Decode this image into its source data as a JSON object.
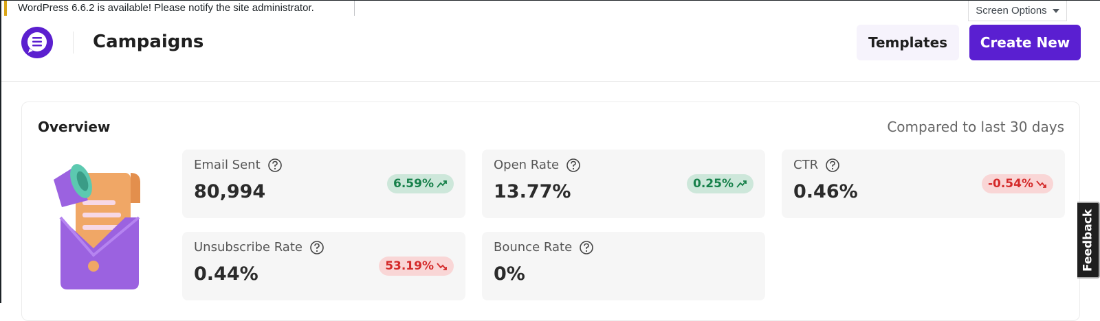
{
  "notice": "WordPress 6.6.2 is available! Please notify the site administrator.",
  "screen_options": "Screen Options",
  "header": {
    "title": "Campaigns",
    "buttons": [
      "Templates",
      "Create New"
    ]
  },
  "overview": {
    "title": "Overview",
    "comparison": "Compared to last 30 days",
    "metrics": [
      {
        "label": "Email Sent",
        "value": "80,994",
        "change": "6.59%",
        "trend": "up"
      },
      {
        "label": "Open Rate",
        "value": "13.77%",
        "change": "0.25%",
        "trend": "up"
      },
      {
        "label": "CTR",
        "value": "0.46%",
        "change": "-0.54%",
        "trend": "down"
      },
      {
        "label": "Unsubscribe Rate",
        "value": "0.44%",
        "change": "53.19%",
        "trend": "down"
      },
      {
        "label": "Bounce Rate",
        "value": "0%"
      }
    ]
  },
  "feedback": "Feedback"
}
